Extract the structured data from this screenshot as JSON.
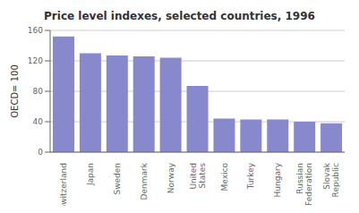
{
  "chart_data": {
    "type": "bar",
    "title": "Price level indexes, selected countries, 1996",
    "ylabel": "OECD= 100",
    "categories": [
      "Switzerland",
      "Japan",
      "Sweden",
      "Denmark",
      "Norway",
      "United\nStates",
      "Mexico",
      "Turkey",
      "Hungary",
      "Russian\nFederation",
      "Slovak\nRepublic"
    ],
    "values": [
      152,
      130,
      127,
      126,
      124,
      87,
      44,
      43,
      43,
      40,
      38
    ],
    "color": "#8888cc",
    "ylim": [
      0,
      160
    ],
    "yticks": [
      0,
      40,
      80,
      120,
      160
    ],
    "grid": true
  }
}
